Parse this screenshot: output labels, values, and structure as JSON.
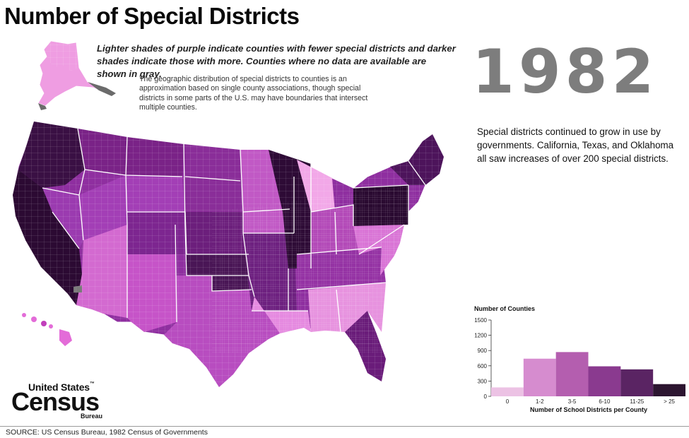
{
  "title": "Number of Special Districts",
  "subtitle": "Lighter shades of purple indicate counties with fewer special districts and darker shades indicate those with more.  Counties where no data are available are shown in gray.",
  "note": "The geographic distribution of special districts to counties is an approximation based on single county associations, though special districts in some parts of the U.S. may have boundaries that intersect multiple counties.",
  "year": "1982",
  "year_description": "Special districts continued to grow in use by governments. California, Texas, and Oklahoma all saw increases of over 200 special districts.",
  "source": "SOURCE: US Census Bureau, 1982 Census of Governments",
  "logo": {
    "line1": "United States",
    "tm": "™",
    "line2": "Census",
    "line3": "Bureau"
  },
  "legend_colors": [
    "#ecc2e4",
    "#d68ccf",
    "#b45eaf",
    "#8a3a8f",
    "#5a2463",
    "#2c1530"
  ],
  "nodata_color": "#7a7a7a",
  "chart_data": {
    "type": "bar",
    "title": "Number of Counties",
    "xlabel": "Number of School Districts per County",
    "ylabel": "",
    "categories": [
      "0",
      "1-2",
      "3-5",
      "6-10",
      "11-25",
      "> 25"
    ],
    "values": [
      175,
      740,
      870,
      590,
      530,
      240
    ],
    "yticks": [
      "0",
      "300",
      "600",
      "900",
      "1200",
      "1500"
    ],
    "ytick_values": [
      0,
      300,
      600,
      900,
      1200,
      1500
    ],
    "ylim": [
      0,
      1500
    ],
    "colors": [
      "#ecc2e4",
      "#d68ccf",
      "#b45eaf",
      "#8a3a8f",
      "#5a2463",
      "#2c1530"
    ],
    "grid": false,
    "legend": "none"
  }
}
